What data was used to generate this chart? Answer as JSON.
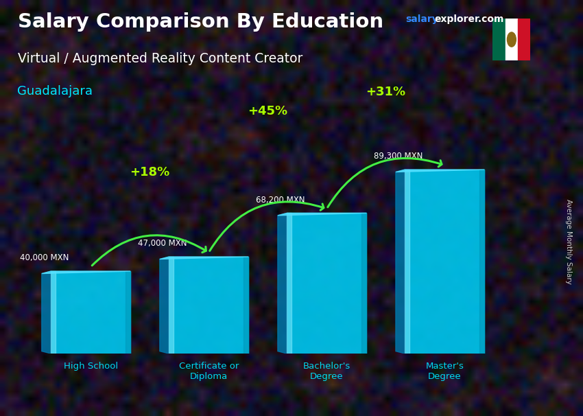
{
  "title": "Salary Comparison By Education",
  "subtitle": "Virtual / Augmented Reality Content Creator",
  "city": "Guadalajara",
  "ylabel": "Average Monthly Salary",
  "website_salary": "salary",
  "website_explorer": "explorer.com",
  "categories": [
    "High School",
    "Certificate or\nDiploma",
    "Bachelor's\nDegree",
    "Master's\nDegree"
  ],
  "values": [
    40000,
    47000,
    68200,
    89300
  ],
  "value_labels": [
    "40,000 MXN",
    "47,000 MXN",
    "68,200 MXN",
    "89,300 MXN"
  ],
  "pct_changes": [
    "+18%",
    "+45%",
    "+31%"
  ],
  "bar_face_color": "#00c8f0",
  "bar_side_color": "#0077aa",
  "bar_top_color": "#55e0ff",
  "bar_right_color": "#33b8e0",
  "bg_dark": "#16161e",
  "title_color": "#ffffff",
  "subtitle_color": "#ffffff",
  "city_color": "#00e8ff",
  "cat_color": "#00d8f0",
  "pct_color": "#aaff00",
  "arrow_color": "#44ee44",
  "value_color": "#ffffff",
  "ylabel_color": "#cccccc",
  "website_salary_color": "#3388ff",
  "website_explorer_color": "#ffffff",
  "figsize": [
    8.5,
    6.06
  ],
  "dpi": 100
}
